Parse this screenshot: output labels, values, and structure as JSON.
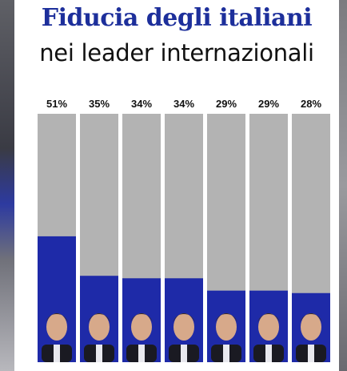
{
  "header": {
    "title": "Fiducia degli italiani",
    "subtitle": "nei leader internazionali"
  },
  "colors": {
    "title": "#1d2f9b",
    "bar_fill": "#1e2aa8",
    "bar_track": "#b3b3b3"
  },
  "chart_data": {
    "type": "bar",
    "title": "Fiducia degli italiani",
    "subtitle": "nei leader internazionali",
    "value_labels": [
      "51%",
      "35%",
      "34%",
      "34%",
      "29%",
      "29%",
      "28%"
    ],
    "values": [
      51,
      35,
      34,
      34,
      29,
      29,
      28
    ],
    "ylim": [
      0,
      100
    ],
    "unit": "%",
    "grid": false,
    "legend": "none"
  }
}
